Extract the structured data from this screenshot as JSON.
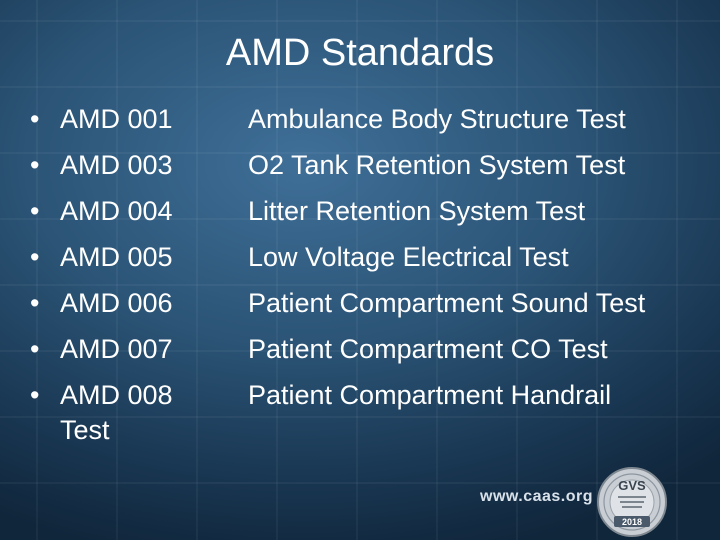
{
  "slide": {
    "title": "AMD Standards"
  },
  "codes": [
    "AMD 001",
    "AMD 003",
    "AMD 004",
    "AMD 005",
    "AMD 006",
    "AMD 007",
    "AMD 008"
  ],
  "code_overflow_text": "Test",
  "descriptions": [
    "Ambulance Body Structure Test",
    "O2 Tank Retention System Test",
    "Litter Retention System Test",
    "Low Voltage Electrical Test",
    "Patient Compartment Sound Test",
    "Patient Compartment CO Test",
    "Patient Compartment Handrail"
  ],
  "bullet_glyph": "•",
  "footer": {
    "url": "www.caas.org"
  },
  "seal": {
    "initials": "GVS",
    "year": "2018"
  },
  "colors": {
    "background_center": "#3f6f98",
    "background_edge": "#10263b",
    "text": "#ffffff"
  }
}
